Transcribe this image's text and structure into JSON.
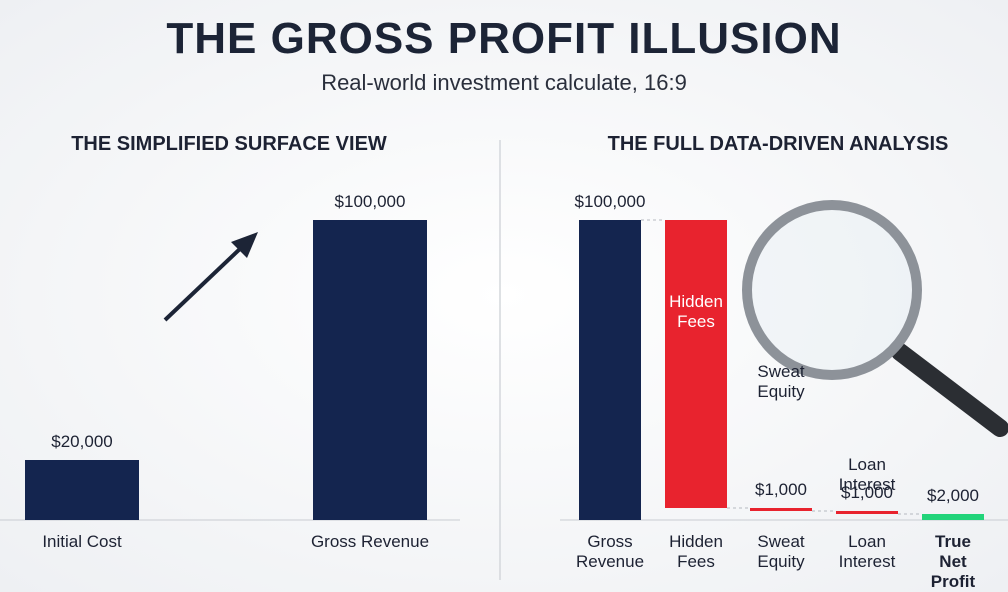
{
  "header": {
    "title": "THE GROSS PROFIT ILLUSION",
    "subtitle": "Real-world investment calculate, 16:9"
  },
  "chart_data": [
    {
      "type": "bar",
      "title": "THE SIMPLIFIED SURFACE VIEW",
      "categories": [
        "Initial Cost",
        "Gross Revenue"
      ],
      "values": [
        20000,
        100000
      ],
      "value_labels": [
        "$20,000",
        "$100,000"
      ],
      "color": "#14254f"
    },
    {
      "type": "waterfall",
      "title": "THE FULL DATA-DRIVEN ANALYSIS",
      "categories": [
        "Gross\nRevenue",
        "Hidden\nFees",
        "Sweat\nEquity",
        "Loan\nInterest",
        "True Net\nProfit"
      ],
      "values": [
        100000,
        96000,
        1000,
        1000,
        2000
      ],
      "value_labels": [
        "$100,000",
        null,
        "$1,000",
        "$1,000",
        "$2,000"
      ],
      "colors": [
        "#14254f",
        "#e8232e",
        "#e8232e",
        "#e8232e",
        "#22d47a"
      ]
    }
  ]
}
